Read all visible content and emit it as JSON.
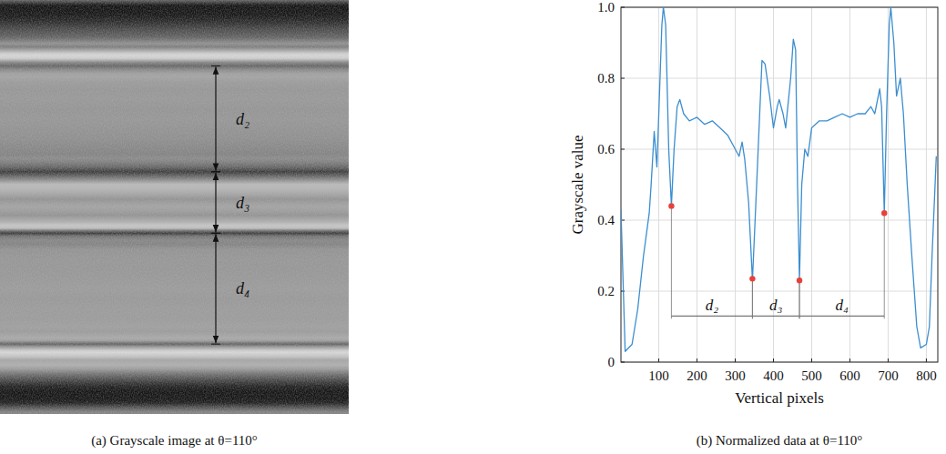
{
  "chart_data": {
    "type": "line",
    "title": "(b) Normalized data at θ=110°",
    "x_label": "Vertical pixels",
    "y_label": "Grayscale value",
    "xlim": [
      1,
      830
    ],
    "xticks": [
      100,
      200,
      300,
      400,
      500,
      600,
      700,
      800
    ],
    "ylim": [
      0,
      1
    ],
    "yticks": [
      0,
      0.2,
      0.4,
      0.6,
      0.8,
      {
        "value": 1,
        "label": "1.0"
      }
    ],
    "grid": true,
    "series": [
      {
        "type": "line",
        "color": "#3b8ed0",
        "x": [
          1,
          12,
          30,
          45,
          60,
          75,
          80,
          88,
          95,
          100,
          108,
          112,
          118,
          126,
          133,
          140,
          148,
          155,
          165,
          180,
          200,
          220,
          240,
          260,
          280,
          300,
          310,
          318,
          325,
          335,
          345,
          352,
          360,
          370,
          378,
          390,
          400,
          410,
          415,
          425,
          432,
          445,
          452,
          458,
          463,
          468,
          474,
          482,
          490,
          500,
          520,
          540,
          560,
          580,
          600,
          620,
          640,
          655,
          665,
          678,
          683,
          690,
          696,
          703,
          707,
          715,
          722,
          732,
          740,
          750,
          762,
          775,
          785,
          800,
          808,
          815,
          826
        ],
        "values": [
          0.43,
          0.03,
          0.05,
          0.15,
          0.3,
          0.42,
          0.5,
          0.65,
          0.55,
          0.7,
          0.95,
          1.0,
          0.95,
          0.6,
          0.44,
          0.6,
          0.72,
          0.74,
          0.7,
          0.68,
          0.69,
          0.67,
          0.68,
          0.66,
          0.64,
          0.6,
          0.58,
          0.62,
          0.57,
          0.45,
          0.23,
          0.4,
          0.6,
          0.85,
          0.84,
          0.75,
          0.66,
          0.72,
          0.74,
          0.7,
          0.66,
          0.8,
          0.91,
          0.88,
          0.5,
          0.23,
          0.5,
          0.6,
          0.58,
          0.66,
          0.68,
          0.68,
          0.69,
          0.7,
          0.69,
          0.7,
          0.7,
          0.72,
          0.7,
          0.77,
          0.72,
          0.42,
          0.7,
          0.95,
          1.0,
          0.9,
          0.75,
          0.8,
          0.7,
          0.5,
          0.3,
          0.1,
          0.04,
          0.05,
          0.1,
          0.3,
          0.58
        ]
      },
      {
        "type": "scatter",
        "marker": "circle",
        "color": "#e8403a",
        "x": [
          133,
          345,
          468,
          690
        ],
        "values": [
          0.44,
          0.235,
          0.23,
          0.42
        ]
      }
    ],
    "annotations": [
      {
        "label": "d₂",
        "from": 133,
        "to": 345,
        "y": 0.13
      },
      {
        "label": "d₃",
        "from": 345,
        "to": 468,
        "y": 0.13
      },
      {
        "label": "d₄",
        "from": 468,
        "to": 690,
        "y": 0.13
      }
    ]
  },
  "image_panel": {
    "caption": "(a) Grayscale image at θ=110°",
    "labels": [
      "d₂",
      "d₃",
      "d₄"
    ]
  }
}
